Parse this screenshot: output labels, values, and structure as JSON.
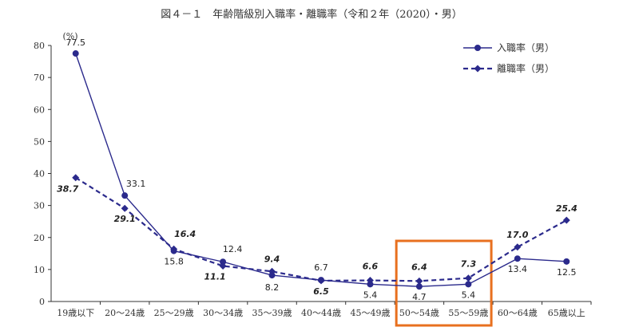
{
  "chart_data": {
    "type": "line",
    "title": "図４－１　年齢階級別入職率・離職率（令和２年（2020）・男）",
    "y_unit": "(%)",
    "ylim": [
      0,
      80
    ],
    "y_ticks": [
      0,
      10,
      20,
      30,
      40,
      50,
      60,
      70,
      80
    ],
    "categories": [
      "19歳以下",
      "20～24歳",
      "25～29歳",
      "30～34歳",
      "35～39歳",
      "40～44歳",
      "45～49歳",
      "50～54歳",
      "55～59歳",
      "60～64歳",
      "65歳以上"
    ],
    "series": [
      {
        "name": "入職率（男）",
        "values": [
          77.5,
          33.1,
          15.8,
          12.4,
          8.2,
          6.7,
          5.4,
          4.7,
          5.4,
          13.4,
          12.5
        ],
        "color": "#2b2a8c",
        "style": "solid",
        "marker": "circle"
      },
      {
        "name": "離職率（男）",
        "values": [
          38.7,
          29.1,
          16.4,
          11.1,
          9.4,
          6.5,
          6.6,
          6.4,
          7.3,
          17.0,
          25.4
        ],
        "color": "#2b2a8c",
        "style": "dashed",
        "marker": "diamond"
      }
    ],
    "labels": {
      "entry": [
        "77.5",
        "33.1",
        "15.8",
        "12.4",
        "8.2",
        "6.7",
        "5.4",
        "4.7",
        "5.4",
        "13.4",
        "12.5"
      ],
      "separation": [
        "38.7",
        "29.1",
        "16.4",
        "11.1",
        "9.4",
        "6.5",
        "6.6",
        "6.4",
        "7.3",
        "17.0",
        "25.4"
      ]
    },
    "grid": false,
    "legend_position": "top-right",
    "highlight": {
      "categories": [
        "50～54歳",
        "55～59歳"
      ],
      "color": "#e8701f"
    }
  }
}
